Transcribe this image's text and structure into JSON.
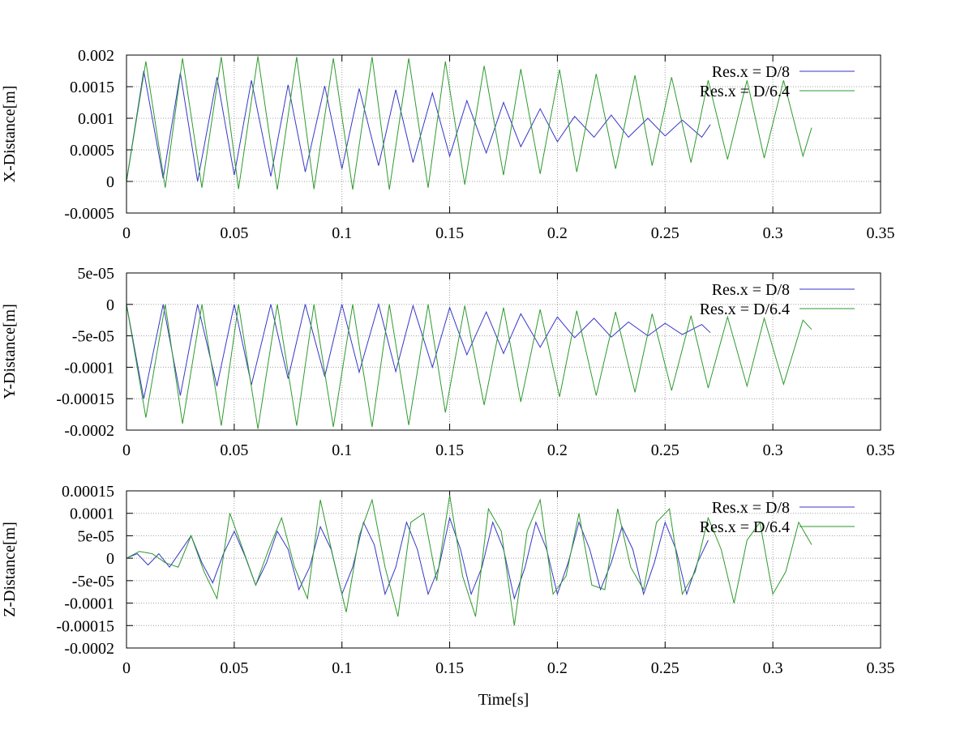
{
  "chart_data": [
    {
      "type": "line",
      "xlabel": "",
      "ylabel": "X-Distance[m]",
      "xlim": [
        0,
        0.35
      ],
      "ylim": [
        -0.0005,
        0.002
      ],
      "xticks": [
        0,
        0.05,
        0.1,
        0.15,
        0.2,
        0.25,
        0.3,
        0.35
      ],
      "xtick_labels": [
        "0",
        "0.05",
        "0.1",
        "0.15",
        "0.2",
        "0.25",
        "0.3",
        "0.35"
      ],
      "yticks": [
        -0.0005,
        0,
        0.0005,
        0.001,
        0.0015,
        0.002
      ],
      "ytick_labels": [
        "-0.0005",
        "0",
        "0.0005",
        "0.001",
        "0.0015",
        "0.002"
      ],
      "grid": true,
      "legend_position": "top-right",
      "series": [
        {
          "name": "Res.x = D/8",
          "color": "#3636c8",
          "x": [
            0,
            0.008,
            0.017,
            0.025,
            0.033,
            0.042,
            0.05,
            0.058,
            0.067,
            0.075,
            0.083,
            0.092,
            0.1,
            0.108,
            0.117,
            0.125,
            0.133,
            0.142,
            0.15,
            0.158,
            0.167,
            0.175,
            0.183,
            0.192,
            0.2,
            0.208,
            0.217,
            0.225,
            0.233,
            0.242,
            0.25,
            0.258,
            0.267,
            0.271
          ],
          "y": [
            0,
            0.00175,
            5e-05,
            0.00172,
            0.0,
            0.00165,
            0.0001,
            0.0016,
            8e-05,
            0.00153,
            0.00015,
            0.00151,
            0.0002,
            0.00147,
            0.00025,
            0.00145,
            0.0003,
            0.0014,
            0.0004,
            0.00128,
            0.00045,
            0.00125,
            0.00055,
            0.00115,
            0.00063,
            0.00103,
            0.0007,
            0.00105,
            0.0007,
            0.001,
            0.00072,
            0.00097,
            0.0007,
            0.0009
          ]
        },
        {
          "name": "Res.x = D/6.4",
          "color": "#2e9a2e",
          "x": [
            0,
            0.009,
            0.018,
            0.026,
            0.035,
            0.044,
            0.052,
            0.061,
            0.07,
            0.079,
            0.087,
            0.096,
            0.105,
            0.114,
            0.122,
            0.131,
            0.14,
            0.148,
            0.157,
            0.166,
            0.175,
            0.183,
            0.192,
            0.201,
            0.209,
            0.218,
            0.227,
            0.236,
            0.244,
            0.253,
            0.262,
            0.27,
            0.279,
            0.288,
            0.296,
            0.305,
            0.314,
            0.318
          ],
          "y": [
            0,
            0.0019,
            -0.0001,
            0.00195,
            -0.0001,
            0.00197,
            -0.00012,
            0.00198,
            -0.00013,
            0.00197,
            -0.00012,
            0.00195,
            -0.00013,
            0.00197,
            -0.00013,
            0.00195,
            -0.0001,
            0.0019,
            -5e-05,
            0.00183,
            0.0001,
            0.00178,
            0.00012,
            0.00177,
            0.00015,
            0.0017,
            0.0002,
            0.00168,
            0.00025,
            0.00165,
            0.0003,
            0.0016,
            0.00035,
            0.0016,
            0.00037,
            0.0016,
            0.0004,
            0.00085
          ]
        }
      ]
    },
    {
      "type": "line",
      "xlabel": "",
      "ylabel": "Y-Distance[m]",
      "xlim": [
        0,
        0.35
      ],
      "ylim": [
        -0.0002,
        5e-05
      ],
      "xticks": [
        0,
        0.05,
        0.1,
        0.15,
        0.2,
        0.25,
        0.3,
        0.35
      ],
      "xtick_labels": [
        "0",
        "0.05",
        "0.1",
        "0.15",
        "0.2",
        "0.25",
        "0.3",
        "0.35"
      ],
      "yticks": [
        -0.0002,
        -0.00015,
        -0.0001,
        -5e-05,
        0,
        5e-05
      ],
      "ytick_labels": [
        "-0.0002",
        "-0.00015",
        "-0.0001",
        "-5e-05",
        "0",
        "5e-05"
      ],
      "grid": true,
      "legend_position": "top-right",
      "series": [
        {
          "name": "Res.x = D/8",
          "color": "#3636c8",
          "x": [
            0,
            0.008,
            0.017,
            0.025,
            0.033,
            0.042,
            0.05,
            0.058,
            0.067,
            0.075,
            0.083,
            0.092,
            0.1,
            0.108,
            0.117,
            0.125,
            0.133,
            0.142,
            0.15,
            0.158,
            0.167,
            0.175,
            0.183,
            0.192,
            0.2,
            0.208,
            0.217,
            0.225,
            0.233,
            0.242,
            0.25,
            0.258,
            0.267,
            0.271
          ],
          "y": [
            0,
            -0.00015,
            0,
            -0.000145,
            0,
            -0.00013,
            0,
            -0.000128,
            0,
            -0.000118,
            0,
            -0.000115,
            0,
            -0.000108,
            0,
            -0.000107,
            -2e-06,
            -0.0001,
            -5e-06,
            -8e-05,
            -1.2e-05,
            -7.8e-05,
            -1.5e-05,
            -6.8e-05,
            -2e-05,
            -5.3e-05,
            -2.2e-05,
            -5.2e-05,
            -2.8e-05,
            -5e-05,
            -3e-05,
            -4.8e-05,
            -3.2e-05,
            -4.5e-05
          ]
        },
        {
          "name": "Res.x = D/6.4",
          "color": "#2e9a2e",
          "x": [
            0,
            0.009,
            0.018,
            0.026,
            0.035,
            0.044,
            0.052,
            0.061,
            0.07,
            0.079,
            0.087,
            0.096,
            0.105,
            0.114,
            0.122,
            0.131,
            0.14,
            0.148,
            0.157,
            0.166,
            0.175,
            0.183,
            0.192,
            0.201,
            0.209,
            0.218,
            0.227,
            0.236,
            0.244,
            0.253,
            0.262,
            0.27,
            0.279,
            0.288,
            0.296,
            0.305,
            0.314,
            0.318
          ],
          "y": [
            0,
            -0.00018,
            0,
            -0.00019,
            0,
            -0.000193,
            0,
            -0.000198,
            0,
            -0.000193,
            0,
            -0.000195,
            0,
            -0.000195,
            0,
            -0.000192,
            0,
            -0.000172,
            -2e-06,
            -0.00016,
            -5e-06,
            -0.000155,
            -8e-06,
            -0.000147,
            -1e-05,
            -0.000145,
            -1.2e-05,
            -0.00014,
            -1.5e-05,
            -0.000137,
            -1.8e-05,
            -0.000133,
            -2e-05,
            -0.00013,
            -2.2e-05,
            -0.000127,
            -2.5e-05,
            -4e-05
          ]
        }
      ]
    },
    {
      "type": "line",
      "xlabel": "Time[s]",
      "ylabel": "Z-Distance[m]",
      "xlim": [
        0,
        0.35
      ],
      "ylim": [
        -0.0002,
        0.00015
      ],
      "xticks": [
        0,
        0.05,
        0.1,
        0.15,
        0.2,
        0.25,
        0.3,
        0.35
      ],
      "xtick_labels": [
        "0",
        "0.05",
        "0.1",
        "0.15",
        "0.2",
        "0.25",
        "0.3",
        "0.35"
      ],
      "yticks": [
        -0.0002,
        -0.00015,
        -0.0001,
        -5e-05,
        0,
        5e-05,
        0.0001,
        0.00015
      ],
      "ytick_labels": [
        "-0.0002",
        "-0.00015",
        "-0.0001",
        "-5e-05",
        "0",
        "5e-05",
        "0.0001",
        "0.00015"
      ],
      "grid": true,
      "legend_position": "top-right",
      "series": [
        {
          "name": "Res.x = D/8",
          "color": "#3636c8",
          "x": [
            0,
            0.005,
            0.01,
            0.015,
            0.02,
            0.025,
            0.03,
            0.035,
            0.04,
            0.045,
            0.05,
            0.055,
            0.06,
            0.065,
            0.07,
            0.075,
            0.08,
            0.085,
            0.09,
            0.095,
            0.1,
            0.105,
            0.11,
            0.115,
            0.12,
            0.125,
            0.13,
            0.135,
            0.14,
            0.145,
            0.15,
            0.155,
            0.16,
            0.165,
            0.17,
            0.175,
            0.18,
            0.185,
            0.19,
            0.195,
            0.2,
            0.205,
            0.21,
            0.215,
            0.22,
            0.225,
            0.23,
            0.235,
            0.24,
            0.245,
            0.25,
            0.255,
            0.26,
            0.265,
            0.27
          ],
          "y": [
            0,
            1e-05,
            -1.5e-05,
            1e-05,
            -2e-05,
            1.5e-05,
            5e-05,
            -1e-05,
            -5.5e-05,
            1e-05,
            6e-05,
            5e-06,
            -6e-05,
            -1e-05,
            6e-05,
            2e-05,
            -7e-05,
            -2e-05,
            7e-05,
            2e-05,
            -8e-05,
            -2e-05,
            8e-05,
            3e-05,
            -8e-05,
            -2e-05,
            8e-05,
            2e-05,
            -8e-05,
            -2e-05,
            9e-05,
            2e-05,
            -8e-05,
            -2e-05,
            8e-05,
            2e-05,
            -9e-05,
            -2e-05,
            8e-05,
            2e-05,
            -8e-05,
            -1e-05,
            8e-05,
            2e-05,
            -7e-05,
            -1e-05,
            7e-05,
            2e-05,
            -8e-05,
            -1e-05,
            8e-05,
            2e-05,
            -8e-05,
            -1e-05,
            4e-05
          ]
        },
        {
          "name": "Res.x = D/6.4",
          "color": "#2e9a2e",
          "x": [
            0,
            0.006,
            0.012,
            0.018,
            0.024,
            0.03,
            0.036,
            0.042,
            0.048,
            0.054,
            0.06,
            0.066,
            0.072,
            0.078,
            0.084,
            0.09,
            0.096,
            0.102,
            0.108,
            0.114,
            0.12,
            0.126,
            0.132,
            0.138,
            0.144,
            0.15,
            0.156,
            0.162,
            0.168,
            0.174,
            0.18,
            0.186,
            0.192,
            0.198,
            0.204,
            0.21,
            0.216,
            0.222,
            0.228,
            0.234,
            0.24,
            0.246,
            0.252,
            0.258,
            0.264,
            0.27,
            0.276,
            0.282,
            0.288,
            0.294,
            0.3,
            0.306,
            0.312,
            0.318
          ],
          "y": [
            0,
            1.5e-05,
            1e-05,
            -1e-05,
            -2e-05,
            5e-05,
            -3e-05,
            -9e-05,
            0.0001,
            2e-05,
            -6e-05,
            2e-05,
            9e-05,
            -2e-05,
            -9e-05,
            0.00013,
            0.0,
            -0.00012,
            5e-05,
            0.00013,
            -2e-05,
            -0.00013,
            8e-05,
            0.0001,
            -5e-05,
            0.00014,
            -4e-05,
            -0.00013,
            0.00011,
            6e-05,
            -0.00015,
            6e-05,
            0.00013,
            -8e-05,
            -4e-05,
            0.0001,
            -6e-05,
            -7e-05,
            0.00011,
            -2e-05,
            -7e-05,
            8e-05,
            0.00011,
            -8e-05,
            -3e-05,
            9e-05,
            2e-05,
            -0.0001,
            4e-05,
            8e-05,
            -8e-05,
            -3e-05,
            8e-05,
            3e-05
          ]
        }
      ]
    }
  ]
}
